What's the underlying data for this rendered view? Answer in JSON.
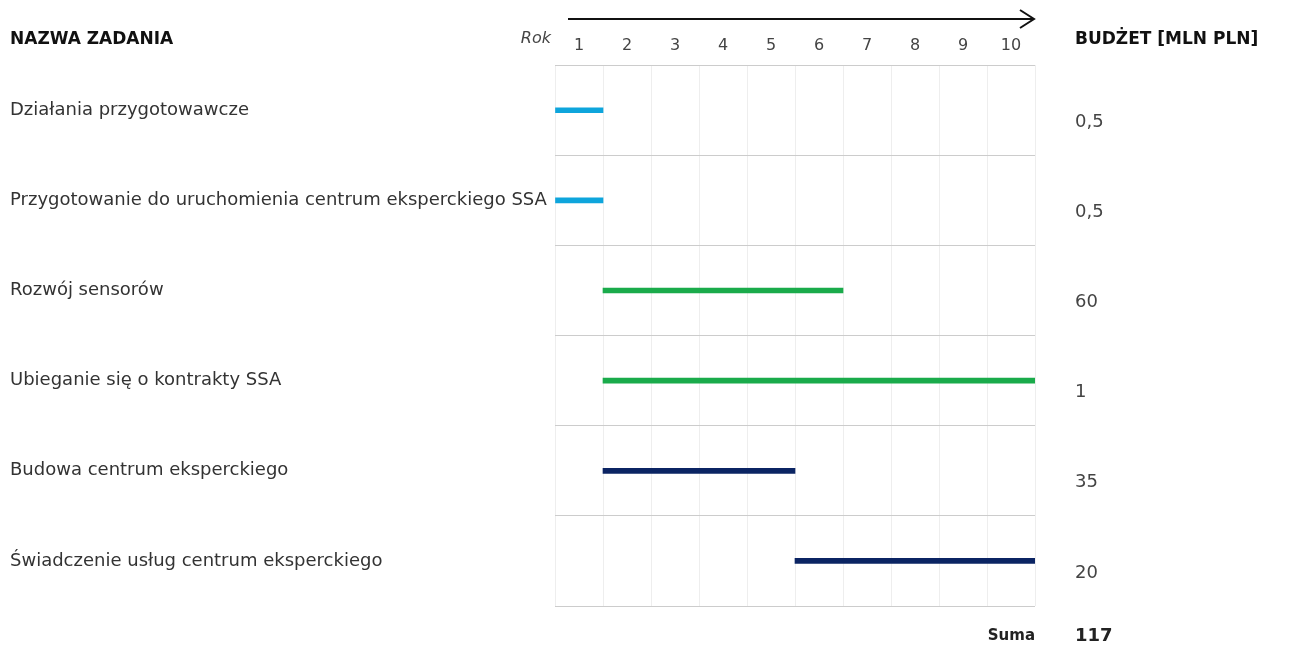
{
  "chart_data": {
    "type": "bar",
    "orientation": "horizontal",
    "ylabel": "NAZWA ZADANIA",
    "xlabel": "Rok",
    "y2label": "BUDŻET [MLN PLN]",
    "categories": [
      "Działania przygotowawcze",
      "Przygotowanie do uruchomienia centrum eksperckiego SSA",
      "Rozwój sensorów",
      "Ubieganie się o kontrakty SSA",
      "Budowa centrum eksperckiego",
      "Świadczenie usług centrum eksperckiego"
    ],
    "base": [
      0,
      0,
      1,
      1,
      1,
      5
    ],
    "values": [
      1,
      1,
      5,
      9,
      4,
      5
    ],
    "colors": [
      "#0ea5dc",
      "#0ea5dc",
      "#1aab4b",
      "#1aab4b",
      "#0b2463",
      "#0b2463"
    ],
    "xlim": [
      0,
      10
    ],
    "xticks": [
      {
        "value": 0,
        "label": null
      },
      {
        "value": 0.5,
        "label": "1"
      },
      {
        "value": 1,
        "label": null
      },
      {
        "value": 1.5,
        "label": "2"
      },
      {
        "value": 2,
        "label": null
      },
      {
        "value": 2.5,
        "label": "3"
      },
      {
        "value": 3,
        "label": null
      },
      {
        "value": 3.5,
        "label": "4"
      },
      {
        "value": 4,
        "label": null
      },
      {
        "value": 4.5,
        "label": "5"
      },
      {
        "value": 5,
        "label": null
      },
      {
        "value": 5.5,
        "label": "6"
      },
      {
        "value": 6,
        "label": null
      },
      {
        "value": 6.5,
        "label": "7"
      },
      {
        "value": 7,
        "label": null
      },
      {
        "value": 7.5,
        "label": "8"
      },
      {
        "value": 8,
        "label": null
      },
      {
        "value": 8.5,
        "label": "9"
      },
      {
        "value": 9,
        "label": null
      },
      {
        "value": 9.5,
        "label": "10"
      },
      {
        "value": 10,
        "label": null
      }
    ],
    "grid": true,
    "legend": false,
    "annotations": [
      "0,5",
      "0,5",
      "60",
      "1",
      "35",
      "20",
      "Suma",
      "117"
    ]
  }
}
